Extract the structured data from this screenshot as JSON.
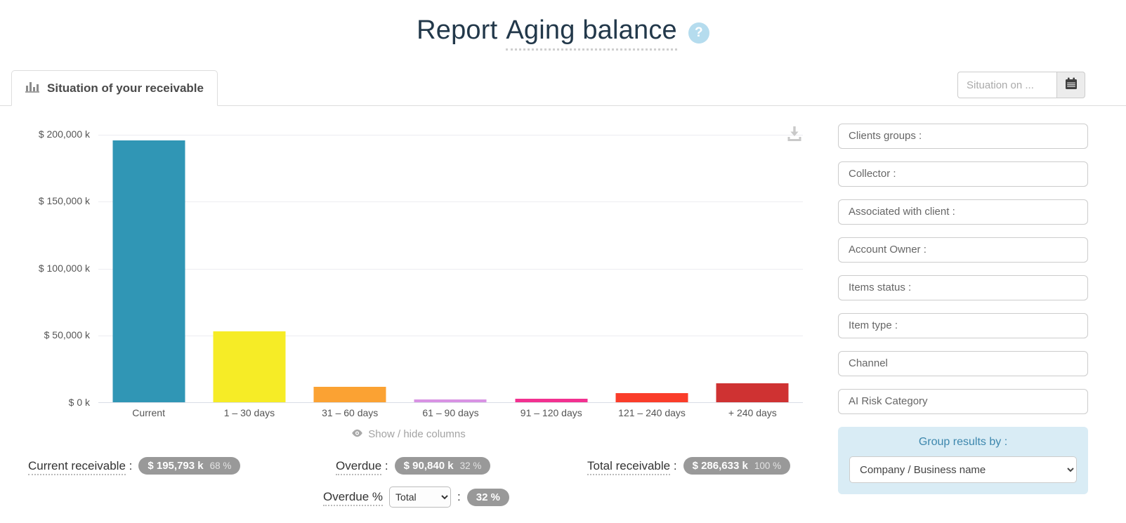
{
  "page": {
    "title_prefix": "Report",
    "title_main": "Aging balance",
    "help_glyph": "?"
  },
  "tab": {
    "label": "Situation of your receivable"
  },
  "situation_date": {
    "placeholder": "Situation on ..."
  },
  "chart_data": {
    "type": "bar",
    "title": "Situation of your receivable",
    "categories": [
      "Current",
      "1 – 30 days",
      "31 – 60 days",
      "61 – 90 days",
      "91 – 120 days",
      "121 – 240 days",
      "+ 240 days"
    ],
    "values": [
      195793,
      52800,
      11700,
      2300,
      2830,
      6800,
      14410
    ],
    "unit": "$ thousands (k)",
    "bar_colors": [
      "#3096b5",
      "#f6ec26",
      "#fba233",
      "#d892e3",
      "#f23190",
      "#fa3d2a",
      "#cf3232"
    ],
    "y_ticks": [
      "$ 200,000 k",
      "$ 150,000 k",
      "$ 100,000 k",
      "$ 50,000 k",
      "$ 0 k"
    ],
    "ylim": [
      0,
      200000
    ],
    "xlabel": "",
    "ylabel": "",
    "grid": true,
    "legend": false
  },
  "chart_controls": {
    "show_hide_label": "Show / hide columns"
  },
  "stats": {
    "current": {
      "label": "Current receivable",
      "suffix": " :",
      "value": "$ 195,793 k",
      "pct": "68 %"
    },
    "overdue": {
      "label": "Overdue",
      "suffix": " :",
      "value": "$ 90,840 k",
      "pct": "32 %"
    },
    "total": {
      "label": "Total receivable",
      "suffix": " :",
      "value": "$ 286,633 k",
      "pct": "100 %"
    },
    "overdue_pct": {
      "label": "Overdue %",
      "select_value": "Total",
      "colon": ":",
      "value": "32 %"
    }
  },
  "filters": [
    "Clients groups :",
    "Collector :",
    "Associated with client :",
    "Account Owner :",
    "Items status :",
    "Item type :",
    "Channel",
    "AI Risk Category"
  ],
  "group_by": {
    "title": "Group results by :",
    "select_value": "Company / Business name"
  },
  "colors": {
    "accent_blue_panel": "#d9ecf5",
    "pill_gray": "#999999",
    "title_text": "#22384a",
    "help_badge": "#b5dcee"
  }
}
